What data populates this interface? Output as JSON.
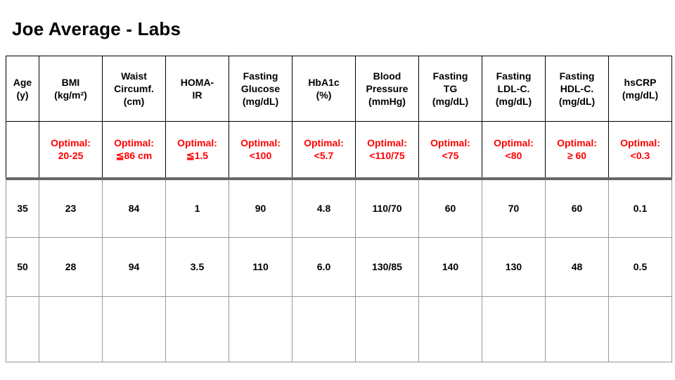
{
  "page": {
    "title": "Joe Average - Labs",
    "background": "#ffffff"
  },
  "table": {
    "headers": [
      "Age\n(y)",
      "BMI\n(kg/m²)",
      "Waist\nCircumf.\n(cm)",
      "HOMA-\nIR",
      "Fasting\nGlucose\n(mg/dL)",
      "HbA1c\n(%)",
      "Blood\nPressure\n(mmHg)",
      "Fasting\nTG\n(mg/dL)",
      "Fasting\nLDL-C.\n(mg/dL)",
      "Fasting\nHDL-C.\n(mg/dL)",
      "hsCRP\n(mg/dL)"
    ],
    "optimal": [
      "",
      "Optimal:\n20-25",
      "Optimal:\n≦86 cm",
      "Optimal:\n≦1.5",
      "Optimal:\n<100",
      "Optimal:\n<5.7",
      "Optimal:\n<110/75",
      "Optimal:\n<75",
      "Optimal:\n<80",
      "Optimal:\n≥ 60",
      "Optimal:\n<0.3"
    ],
    "rows": [
      [
        "35",
        "23",
        "84",
        "1",
        "90",
        "4.8",
        "110/70",
        "60",
        "70",
        "60",
        "0.1"
      ],
      [
        "50",
        "28",
        "94",
        "3.5",
        "110",
        "6.0",
        "130/85",
        "140",
        "130",
        "48",
        "0.5"
      ],
      [
        "",
        "",
        "",
        "",
        "",
        "",
        "",
        "",
        "",
        "",
        ""
      ]
    ],
    "colors": {
      "optimal_text": "#ff0000",
      "header_border": "#000000",
      "body_border": "#999999",
      "separator": "#666666"
    }
  }
}
